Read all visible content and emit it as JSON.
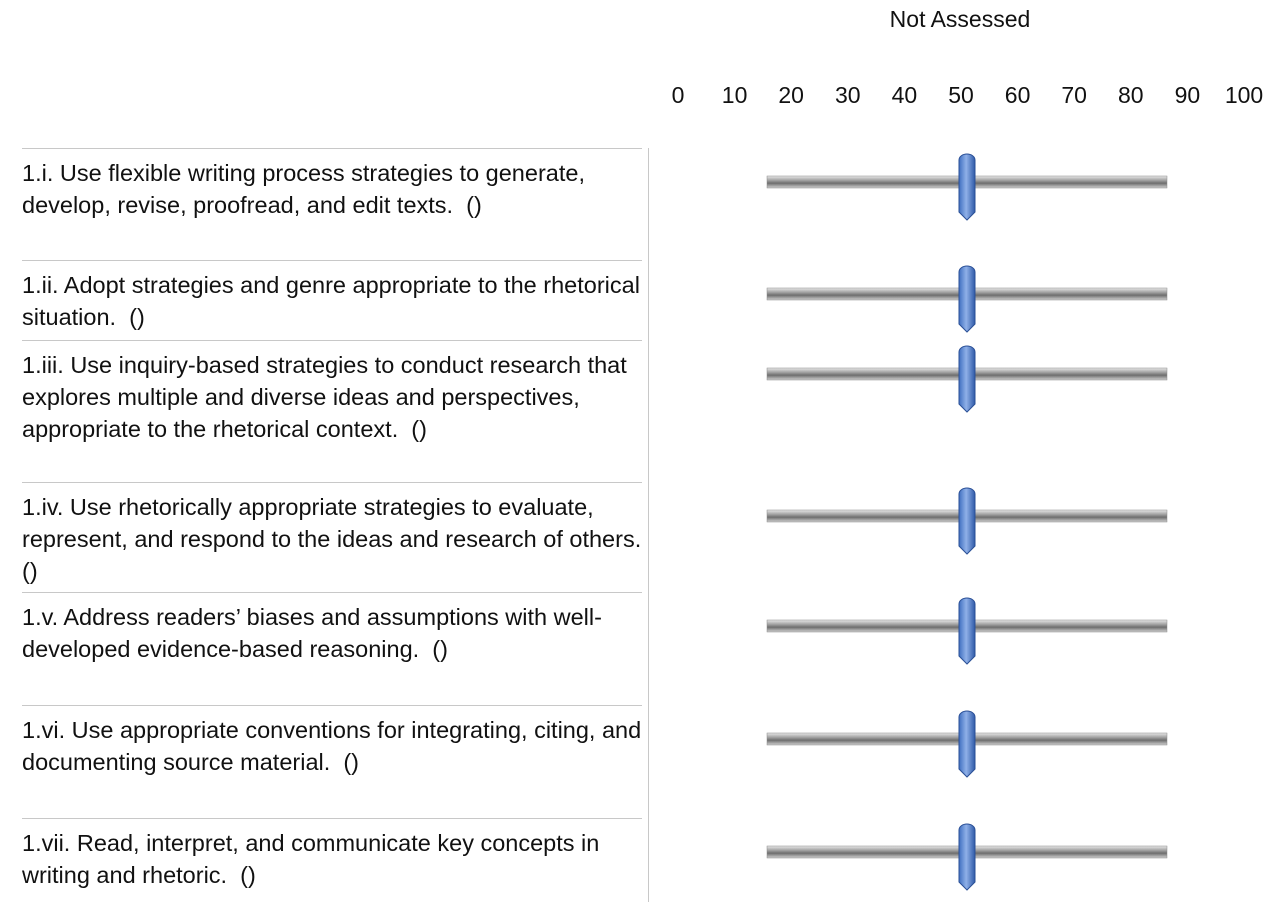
{
  "header": {
    "title": "Not Assessed",
    "scale": [
      0,
      10,
      20,
      30,
      40,
      50,
      60,
      70,
      80,
      90,
      100
    ]
  },
  "rows": [
    {
      "label": "1.i. Use flexible writing process strategies to generate, develop, revise, proofread, and edit texts.  ()",
      "value": 50
    },
    {
      "label": "1.ii. Adopt strategies and genre appropriate to the rhetorical situation.  ()",
      "value": 50
    },
    {
      "label": "1.iii. Use inquiry-based strategies to conduct research that explores multiple and diverse ideas and perspectives, appropriate to the rhetorical context.  ()",
      "value": 50
    },
    {
      "label": "1.iv. Use rhetorically appropriate strategies to evaluate, represent, and respond to the ideas and research of others.  ()",
      "value": 50
    },
    {
      "label": "1.v. Address readers’ biases and assumptions with well-developed evidence-based reasoning.  ()",
      "value": 50
    },
    {
      "label": "1.vi. Use appropriate conventions for integrating, citing, and documenting source material.  ()",
      "value": 50
    },
    {
      "label": "1.vii. Read, interpret, and communicate key concepts in writing and rhetoric.  ()",
      "value": 50
    }
  ]
}
